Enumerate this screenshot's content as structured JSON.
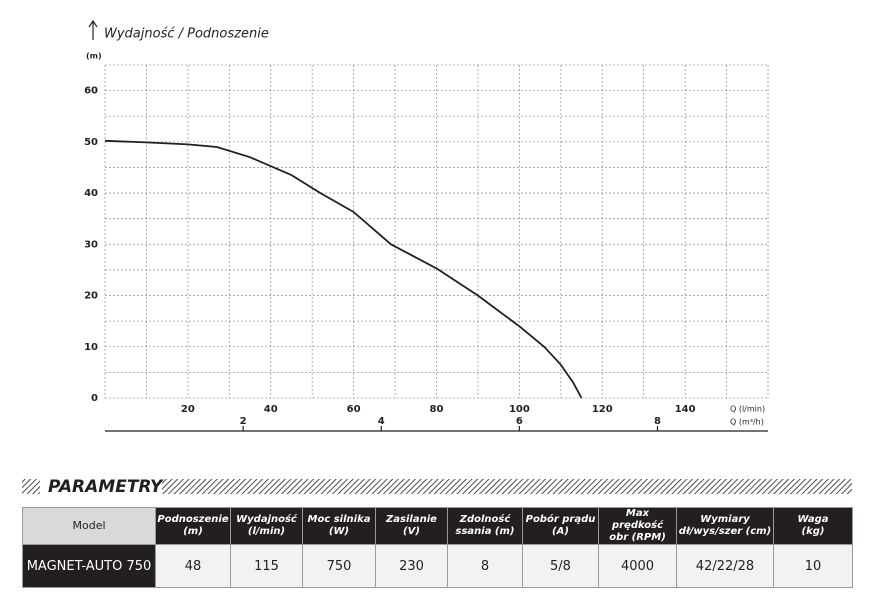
{
  "chart_data": {
    "type": "line",
    "title": "Wydajność / Podnoszenie",
    "y_unit": "(m)",
    "x_label": "Q (l/min)",
    "x2_label": "Q (m³/h)",
    "color": "#231f20",
    "x": [
      0,
      10,
      20,
      27,
      35,
      45,
      52,
      60,
      69,
      80,
      90,
      100,
      106,
      110,
      113,
      115
    ],
    "values": [
      50.2,
      49.9,
      49.5,
      49,
      47,
      43.5,
      40,
      36.3,
      30,
      25.3,
      20,
      14,
      10,
      6.5,
      3,
      0
    ],
    "xlim": [
      0,
      160
    ],
    "xticks": [
      20,
      40,
      60,
      80,
      100,
      120,
      140
    ],
    "x_minor_ticks": [
      10,
      30,
      50,
      70,
      90,
      110,
      130,
      150,
      160
    ],
    "x2lim": [
      0,
      9.6
    ],
    "x2ticks": [
      2,
      4,
      6,
      8
    ],
    "ylim": [
      0,
      65
    ],
    "yticks": [
      0,
      10,
      20,
      30,
      40,
      50,
      60
    ],
    "y_minor_ticks": [
      5,
      15,
      25,
      35,
      45,
      55,
      65
    ],
    "grid": true
  },
  "table": {
    "title": "PARAMETRY",
    "columns": [
      "Model",
      "Podnoszenie\n(m)",
      "Wydajność\n(l/min)",
      "Moc silnika\n(W)",
      "Zasilanie\n(V)",
      "Zdolność\nssania (m)",
      "Pobór prądu\n(A)",
      "Max prędkość\nobr (RPM)",
      "Wymiary\ndł/wys/szer (cm)",
      "Waga\n(kg)"
    ],
    "rows": [
      [
        "MAGNET-AUTO 750",
        "48",
        "115",
        "750",
        "230",
        "8",
        "5/8",
        "4000",
        "42/22/28",
        "10"
      ]
    ]
  }
}
